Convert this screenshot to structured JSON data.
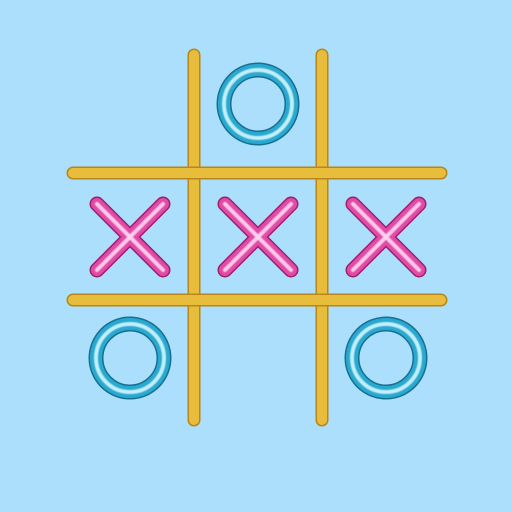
{
  "game": {
    "board": [
      [
        "",
        "O",
        ""
      ],
      [
        "X",
        "X",
        "X"
      ],
      [
        "O",
        "",
        "O"
      ]
    ]
  },
  "colors": {
    "background": "#acdffb",
    "grid": "#e9bd3c",
    "grid_highlight": "#fff4c4",
    "x_mark": "#e24aa6",
    "x_highlight": "#ffd9f2",
    "o_mark": "#29a9cf",
    "o_highlight": "#d4f6ff"
  },
  "icons": {
    "x": "x-mark-icon",
    "o": "o-ring-icon"
  }
}
